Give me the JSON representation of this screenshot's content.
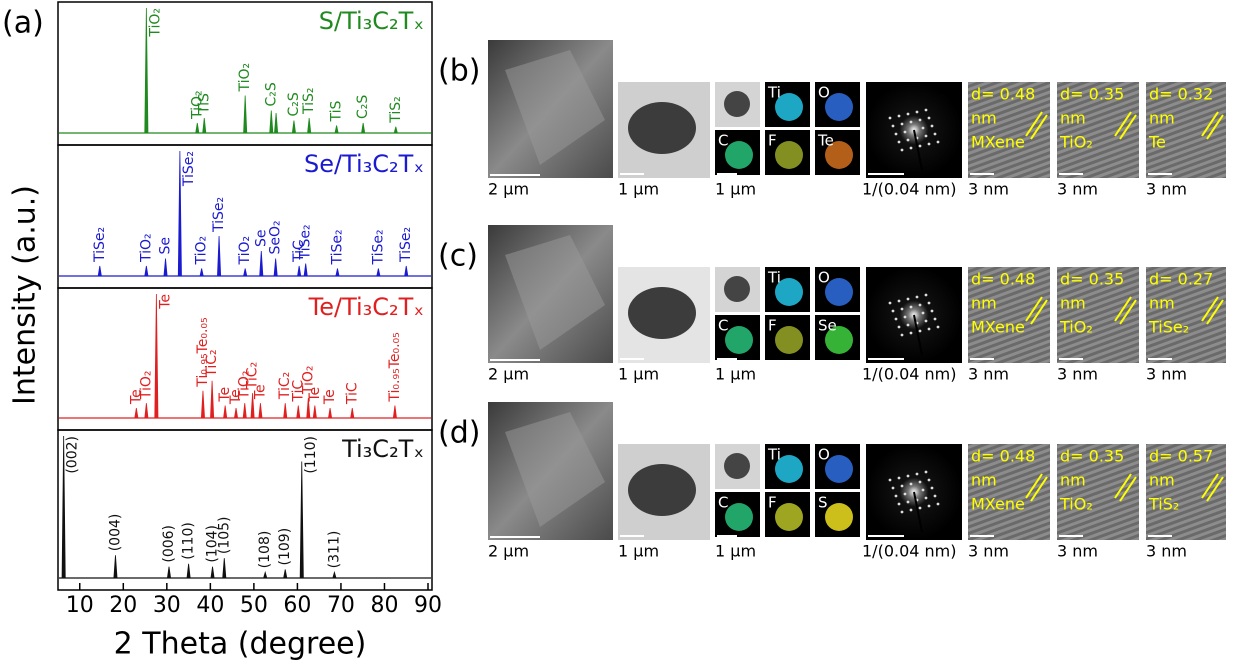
{
  "chart_data": {
    "type": "spectrum",
    "panel_label": "(a)",
    "xlabel": "2 Theta (degree)",
    "ylabel": "Intensity (a.u.)",
    "xlim": [
      5,
      90
    ],
    "xticks": [
      10,
      20,
      30,
      40,
      50,
      60,
      70,
      80,
      90
    ],
    "ylim": [
      0,
      100
    ],
    "series": [
      {
        "name": "S/Ti₃C₂Tₓ",
        "color": "#1f8a1f",
        "peaks": [
          {
            "x": 25.3,
            "height": 100,
            "label": "TiO₂"
          },
          {
            "x": 37.0,
            "height": 8,
            "label": "TiO₂"
          },
          {
            "x": 38.6,
            "height": 12,
            "label": "TiS"
          },
          {
            "x": 48.0,
            "height": 30,
            "label": "TiO₂"
          },
          {
            "x": 54.0,
            "height": 18,
            "label": "C₂S"
          },
          {
            "x": 55.1,
            "height": 16,
            "label": null
          },
          {
            "x": 59.2,
            "height": 10,
            "label": "C₂S"
          },
          {
            "x": 62.7,
            "height": 12,
            "label": "TiS₂"
          },
          {
            "x": 69.0,
            "height": 6,
            "label": "TiS"
          },
          {
            "x": 75.1,
            "height": 8,
            "label": "C₂S"
          },
          {
            "x": 82.6,
            "height": 5,
            "label": "TiS₂"
          }
        ]
      },
      {
        "name": "Se/Ti₃C₂Tₓ",
        "color": "#1a1ad0",
        "peaks": [
          {
            "x": 14.6,
            "height": 8,
            "label": "TiSe₂"
          },
          {
            "x": 25.3,
            "height": 8,
            "label": "TiO₂"
          },
          {
            "x": 29.7,
            "height": 14,
            "label": "Se"
          },
          {
            "x": 33.0,
            "height": 100,
            "label": "TiSe₂"
          },
          {
            "x": 38.0,
            "height": 6,
            "label": "TiO₂"
          },
          {
            "x": 42.0,
            "height": 32,
            "label": "TiSe₂"
          },
          {
            "x": 48.0,
            "height": 6,
            "label": "TiO₂"
          },
          {
            "x": 51.7,
            "height": 20,
            "label": "Se"
          },
          {
            "x": 55.0,
            "height": 14,
            "label": "SeO₂"
          },
          {
            "x": 60.4,
            "height": 8,
            "label": "TiC"
          },
          {
            "x": 61.9,
            "height": 10,
            "label": "TiSe₂"
          },
          {
            "x": 69.2,
            "height": 6,
            "label": "TiSe₂"
          },
          {
            "x": 78.6,
            "height": 6,
            "label": "TiSe₂"
          },
          {
            "x": 85.0,
            "height": 8,
            "label": "TiSe₂"
          }
        ]
      },
      {
        "name": "Te/Ti₃C₂Tₓ",
        "color": "#e02020",
        "peaks": [
          {
            "x": 23.0,
            "height": 8,
            "label": "Te"
          },
          {
            "x": 25.3,
            "height": 12,
            "label": "TiO₂"
          },
          {
            "x": 27.6,
            "height": 100,
            "label": "Te"
          },
          {
            "x": 38.3,
            "height": 22,
            "label": "Ti₀.₉₅Te₀.₀₅"
          },
          {
            "x": 40.4,
            "height": 30,
            "label": "TiC₂"
          },
          {
            "x": 43.4,
            "height": 10,
            "label": "Te"
          },
          {
            "x": 45.9,
            "height": 8,
            "label": "Te"
          },
          {
            "x": 47.9,
            "height": 12,
            "label": "TiO₂"
          },
          {
            "x": 49.7,
            "height": 20,
            "label": "TiC₂"
          },
          {
            "x": 51.5,
            "height": 12,
            "label": "Te"
          },
          {
            "x": 57.2,
            "height": 12,
            "label": "TiC₂"
          },
          {
            "x": 60.2,
            "height": 10,
            "label": "TiC"
          },
          {
            "x": 62.5,
            "height": 16,
            "label": "TiO₂"
          },
          {
            "x": 64.0,
            "height": 10,
            "label": "Te"
          },
          {
            "x": 67.5,
            "height": 8,
            "label": "Te"
          },
          {
            "x": 72.6,
            "height": 8,
            "label": "TiC"
          },
          {
            "x": 82.4,
            "height": 10,
            "label": "Ti₀.₉₅Te₀.₀₅"
          }
        ]
      },
      {
        "name": "Ti₃C₂Tₓ",
        "color": "#111111",
        "peaks": [
          {
            "x": 6.3,
            "height": 100,
            "label": "(002)"
          },
          {
            "x": 18.2,
            "height": 16,
            "label": "(004)"
          },
          {
            "x": 30.5,
            "height": 8,
            "label": "(006)"
          },
          {
            "x": 35.0,
            "height": 10,
            "label": "(110)"
          },
          {
            "x": 40.5,
            "height": 8,
            "label": "(104)"
          },
          {
            "x": 43.2,
            "height": 14,
            "label": "(105)"
          },
          {
            "x": 52.6,
            "height": 4,
            "label": "(108)"
          },
          {
            "x": 57.2,
            "height": 6,
            "label": "(109)"
          },
          {
            "x": 61.0,
            "height": 82,
            "label": "(110)"
          },
          {
            "x": 68.5,
            "height": 4,
            "label": "(311)"
          }
        ]
      }
    ]
  },
  "micrographs": [
    {
      "label": "(b)",
      "scale_bars": [
        "2 µm",
        "1 µm",
        "1 µm",
        "1/(0.04 nm)",
        "3 nm",
        "3 nm",
        "3 nm"
      ],
      "elements": [
        {
          "name": "Ti",
          "color": "#22c4e8"
        },
        {
          "name": "O",
          "color": "#2f6fe0"
        },
        {
          "name": "C",
          "color": "#27c27a"
        },
        {
          "name": "F",
          "color": "#9aa827"
        },
        {
          "name": "Te",
          "color": "#d2701e"
        }
      ],
      "hrtem": [
        {
          "d": "d= 0.48",
          "unit": "nm",
          "phase": "MXene"
        },
        {
          "d": "d= 0.35",
          "unit": "nm",
          "phase": "TiO₂"
        },
        {
          "d": "d= 0.32",
          "unit": "nm",
          "phase": "Te"
        }
      ]
    },
    {
      "label": "(c)",
      "scale_bars": [
        "2 µm",
        "1 µm",
        "1 µm",
        "1/(0.04 nm)",
        "3 nm",
        "3 nm",
        "3 nm"
      ],
      "elements": [
        {
          "name": "Ti",
          "color": "#22c4e8"
        },
        {
          "name": "O",
          "color": "#2f6fe0"
        },
        {
          "name": "C",
          "color": "#27c27a"
        },
        {
          "name": "F",
          "color": "#9aa827"
        },
        {
          "name": "Se",
          "color": "#3fd23f"
        }
      ],
      "hrtem": [
        {
          "d": "d= 0.48",
          "unit": "nm",
          "phase": "MXene"
        },
        {
          "d": "d= 0.35",
          "unit": "nm",
          "phase": "TiO₂"
        },
        {
          "d": "d= 0.27",
          "unit": "nm",
          "phase": "TiSe₂"
        }
      ]
    },
    {
      "label": "(d)",
      "scale_bars": [
        "2 µm",
        "1 µm",
        "1 µm",
        "1/(0.04 nm)",
        "3 nm",
        "3 nm",
        "3 nm"
      ],
      "elements": [
        {
          "name": "Ti",
          "color": "#22c4e8"
        },
        {
          "name": "O",
          "color": "#2f6fe0"
        },
        {
          "name": "C",
          "color": "#27c27a"
        },
        {
          "name": "F",
          "color": "#b8c227"
        },
        {
          "name": "S",
          "color": "#f0e020"
        }
      ],
      "hrtem": [
        {
          "d": "d= 0.48",
          "unit": "nm",
          "phase": "MXene"
        },
        {
          "d": "d= 0.35",
          "unit": "nm",
          "phase": "TiO₂"
        },
        {
          "d": "d= 0.57",
          "unit": "nm",
          "phase": "TiS₂"
        }
      ]
    }
  ]
}
